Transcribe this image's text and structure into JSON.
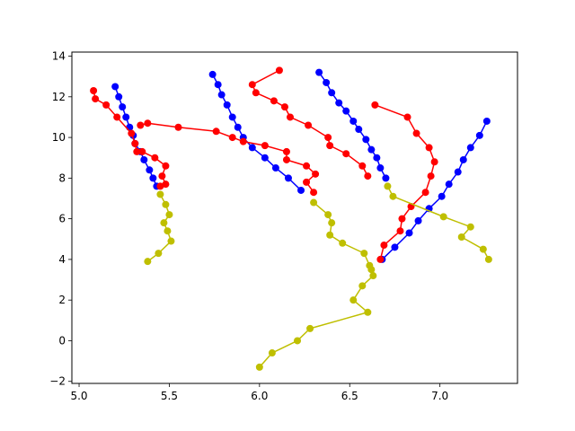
{
  "chart_data": {
    "type": "line",
    "title": "",
    "xlabel": "",
    "ylabel": "",
    "xlim": [
      4.96,
      7.43
    ],
    "ylim": [
      -2.1,
      14.2
    ],
    "xticks": [
      "5.0",
      "5.5",
      "6.0",
      "6.5",
      "7.0"
    ],
    "yticks": [
      "−2",
      "0",
      "2",
      "4",
      "6",
      "8",
      "10",
      "12",
      "14"
    ],
    "xtick_values": [
      5.0,
      5.5,
      6.0,
      6.5,
      7.0
    ],
    "ytick_values": [
      -2,
      0,
      2,
      4,
      6,
      8,
      10,
      12,
      14
    ],
    "grid": false,
    "legend": "none",
    "marker": "circle",
    "series": [
      {
        "color": "#0000ff",
        "points": [
          [
            5.2,
            12.5
          ],
          [
            5.22,
            12.0
          ],
          [
            5.24,
            11.5
          ],
          [
            5.26,
            11.0
          ],
          [
            5.28,
            10.5
          ],
          [
            5.3,
            10.1
          ],
          [
            5.31,
            9.7
          ],
          [
            5.34,
            9.3
          ],
          [
            5.36,
            8.9
          ],
          [
            5.39,
            8.4
          ],
          [
            5.41,
            8.0
          ],
          [
            5.43,
            7.6
          ]
        ]
      },
      {
        "color": "#0000ff",
        "points": [
          [
            5.74,
            13.1
          ],
          [
            5.77,
            12.6
          ],
          [
            5.79,
            12.1
          ],
          [
            5.82,
            11.6
          ],
          [
            5.85,
            11.0
          ],
          [
            5.88,
            10.5
          ],
          [
            5.91,
            10.0
          ],
          [
            5.96,
            9.5
          ],
          [
            6.03,
            9.0
          ],
          [
            6.09,
            8.5
          ],
          [
            6.16,
            8.0
          ],
          [
            6.23,
            7.4
          ]
        ]
      },
      {
        "color": "#0000ff",
        "points": [
          [
            6.33,
            13.2
          ],
          [
            6.37,
            12.7
          ],
          [
            6.4,
            12.2
          ],
          [
            6.44,
            11.7
          ],
          [
            6.48,
            11.3
          ],
          [
            6.52,
            10.8
          ],
          [
            6.55,
            10.4
          ],
          [
            6.59,
            9.9
          ],
          [
            6.62,
            9.4
          ],
          [
            6.65,
            9.0
          ],
          [
            6.67,
            8.5
          ],
          [
            6.7,
            8.0
          ]
        ]
      },
      {
        "color": "#0000ff",
        "points": [
          [
            6.68,
            4.0
          ],
          [
            6.75,
            4.6
          ],
          [
            6.83,
            5.3
          ],
          [
            6.88,
            5.9
          ],
          [
            6.94,
            6.5
          ],
          [
            7.01,
            7.1
          ],
          [
            7.05,
            7.7
          ],
          [
            7.1,
            8.3
          ],
          [
            7.13,
            8.9
          ],
          [
            7.17,
            9.5
          ],
          [
            7.22,
            10.1
          ],
          [
            7.26,
            10.8
          ]
        ]
      },
      {
        "color": "#ff0000",
        "points": [
          [
            5.08,
            12.3
          ],
          [
            5.09,
            11.9
          ],
          [
            5.15,
            11.6
          ],
          [
            5.21,
            11.0
          ],
          [
            5.29,
            10.2
          ],
          [
            5.31,
            9.7
          ],
          [
            5.32,
            9.3
          ],
          [
            5.35,
            9.3
          ],
          [
            5.42,
            9.0
          ],
          [
            5.48,
            8.6
          ],
          [
            5.46,
            8.1
          ],
          [
            5.48,
            7.7
          ],
          [
            5.45,
            7.6
          ]
        ]
      },
      {
        "color": "#ff0000",
        "points": [
          [
            5.34,
            10.6
          ],
          [
            5.38,
            10.7
          ],
          [
            5.55,
            10.5
          ],
          [
            5.76,
            10.3
          ],
          [
            5.85,
            10.0
          ],
          [
            5.91,
            9.8
          ],
          [
            6.03,
            9.6
          ],
          [
            6.15,
            9.3
          ],
          [
            6.15,
            8.9
          ],
          [
            6.26,
            8.6
          ],
          [
            6.31,
            8.2
          ],
          [
            6.26,
            7.8
          ],
          [
            6.3,
            7.3
          ]
        ]
      },
      {
        "color": "#ff0000",
        "points": [
          [
            6.11,
            13.3
          ],
          [
            5.96,
            12.6
          ],
          [
            5.98,
            12.2
          ],
          [
            6.08,
            11.8
          ],
          [
            6.14,
            11.5
          ],
          [
            6.17,
            11.0
          ],
          [
            6.27,
            10.6
          ],
          [
            6.38,
            10.0
          ],
          [
            6.39,
            9.6
          ],
          [
            6.48,
            9.2
          ],
          [
            6.57,
            8.6
          ],
          [
            6.6,
            8.1
          ]
        ]
      },
      {
        "color": "#ff0000",
        "points": [
          [
            6.64,
            11.6
          ],
          [
            6.82,
            11.0
          ],
          [
            6.87,
            10.2
          ],
          [
            6.94,
            9.5
          ],
          [
            6.97,
            8.8
          ],
          [
            6.95,
            8.1
          ],
          [
            6.92,
            7.3
          ],
          [
            6.84,
            6.6
          ],
          [
            6.79,
            6.0
          ],
          [
            6.78,
            5.4
          ],
          [
            6.69,
            4.7
          ],
          [
            6.67,
            4.0
          ]
        ]
      },
      {
        "color": "#bfbf00",
        "points": [
          [
            5.38,
            3.9
          ],
          [
            5.44,
            4.3
          ],
          [
            5.51,
            4.9
          ],
          [
            5.49,
            5.4
          ],
          [
            5.47,
            5.8
          ],
          [
            5.5,
            6.2
          ],
          [
            5.48,
            6.7
          ],
          [
            5.45,
            7.2
          ]
        ]
      },
      {
        "color": "#bfbf00",
        "points": [
          [
            6.0,
            -1.3
          ],
          [
            6.07,
            -0.6
          ],
          [
            6.21,
            0.0
          ],
          [
            6.28,
            0.6
          ],
          [
            6.6,
            1.4
          ],
          [
            6.52,
            2.0
          ],
          [
            6.57,
            2.7
          ],
          [
            6.63,
            3.2
          ],
          [
            6.62,
            3.5
          ],
          [
            6.61,
            3.7
          ],
          [
            6.58,
            4.3
          ],
          [
            6.46,
            4.8
          ],
          [
            6.39,
            5.2
          ],
          [
            6.4,
            5.8
          ],
          [
            6.38,
            6.2
          ],
          [
            6.3,
            6.8
          ]
        ]
      },
      {
        "color": "#bfbf00",
        "points": [
          [
            6.71,
            7.6
          ],
          [
            6.74,
            7.1
          ],
          [
            7.02,
            6.1
          ],
          [
            7.17,
            5.6
          ],
          [
            7.12,
            5.1
          ],
          [
            7.24,
            4.5
          ],
          [
            7.27,
            4.0
          ]
        ]
      }
    ]
  }
}
